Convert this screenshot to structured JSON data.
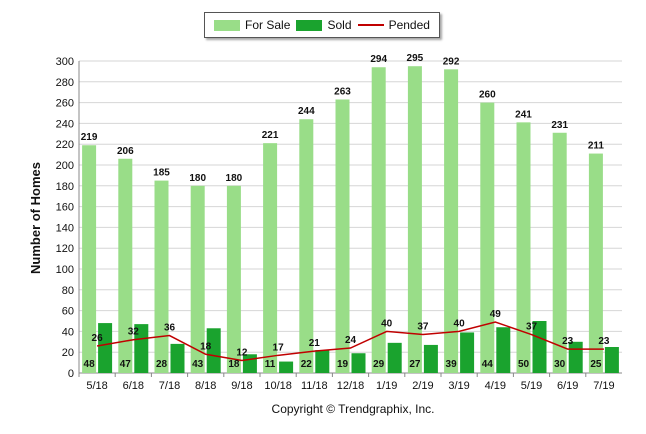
{
  "chart_data": {
    "type": "bar",
    "ylabel": "Number of Homes",
    "ylim": [
      0,
      300
    ],
    "yticks": [
      0,
      20,
      40,
      60,
      80,
      100,
      120,
      140,
      160,
      180,
      200,
      220,
      240,
      260,
      280,
      300
    ],
    "categories": [
      "5/18",
      "6/18",
      "7/18",
      "8/18",
      "9/18",
      "10/18",
      "11/18",
      "12/18",
      "1/19",
      "2/19",
      "3/19",
      "4/19",
      "5/19",
      "6/19",
      "7/19"
    ],
    "series": [
      {
        "name": "For Sale",
        "kind": "bar",
        "color": "#99dd88",
        "values": [
          219,
          206,
          185,
          180,
          180,
          221,
          244,
          263,
          294,
          295,
          292,
          260,
          241,
          231,
          211
        ]
      },
      {
        "name": "Sold",
        "kind": "bar",
        "color": "#1aa32e",
        "values": [
          48,
          47,
          28,
          43,
          18,
          11,
          22,
          19,
          29,
          27,
          39,
          44,
          50,
          30,
          25
        ]
      },
      {
        "name": "Pended",
        "kind": "line",
        "color": "#c00000",
        "values": [
          26,
          32,
          36,
          18,
          12,
          17,
          21,
          24,
          40,
          37,
          40,
          49,
          37,
          23,
          23
        ]
      }
    ],
    "legend": "top-center",
    "grid": true
  },
  "footer": {
    "copyright": "Copyright © Trendgraphix, Inc."
  }
}
